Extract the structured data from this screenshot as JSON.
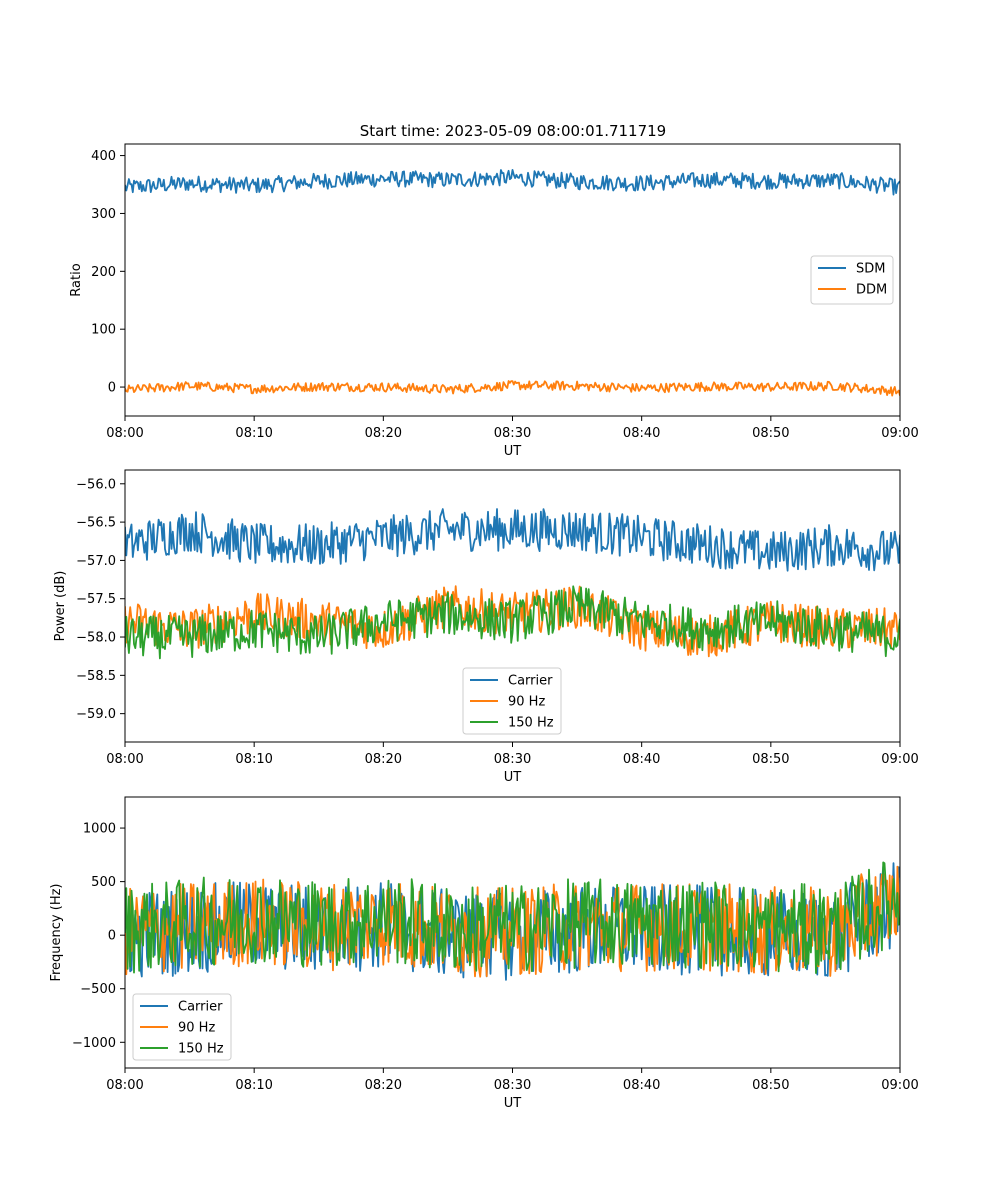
{
  "title": "Start time: 2023-05-09 08:00:01.711719",
  "colors": {
    "blue": "#1f77b4",
    "orange": "#ff7f0e",
    "green": "#2ca02c"
  },
  "x_tick_labels": [
    "08:00",
    "08:10",
    "08:20",
    "08:30",
    "08:40",
    "08:50",
    "09:00"
  ],
  "chart_data": [
    {
      "type": "line",
      "xlabel": "UT",
      "ylabel": "Ratio",
      "xlim": [
        "08:00",
        "09:00"
      ],
      "ylim": [
        -50,
        420
      ],
      "yticks": [
        0,
        100,
        200,
        300,
        400
      ],
      "ytick_labels": [
        "0",
        "100",
        "200",
        "300",
        "400"
      ],
      "legend": "center-right",
      "x": [
        "08:00",
        "08:05",
        "08:10",
        "08:15",
        "08:20",
        "08:25",
        "08:30",
        "08:35",
        "08:40",
        "08:45",
        "08:50",
        "08:55",
        "09:00"
      ],
      "series": [
        {
          "name": "SDM",
          "color": "#1f77b4",
          "values": [
            345,
            352,
            348,
            356,
            360,
            358,
            362,
            355,
            352,
            358,
            356,
            357,
            345
          ],
          "noise": 14
        },
        {
          "name": "DDM",
          "color": "#ff7f0e",
          "values": [
            -5,
            2,
            -3,
            1,
            0,
            -4,
            3,
            2,
            -2,
            1,
            0,
            2,
            -8
          ],
          "noise": 8
        }
      ]
    },
    {
      "type": "line",
      "xlabel": "UT",
      "ylabel": "Power (dB)",
      "xlim": [
        "08:00",
        "09:00"
      ],
      "ylim": [
        -59.37,
        -55.82
      ],
      "yticks": [
        -59.0,
        -58.5,
        -58.0,
        -57.5,
        -57.0,
        -56.5,
        -56.0
      ],
      "ytick_labels": [
        "−59.0",
        "−58.5",
        "−58.0",
        "−57.5",
        "−57.0",
        "−56.5",
        "−56.0"
      ],
      "legend": "bottom-center",
      "x": [
        "08:00",
        "08:05",
        "08:10",
        "08:15",
        "08:20",
        "08:25",
        "08:30",
        "08:35",
        "08:40",
        "08:45",
        "08:50",
        "08:55",
        "09:00"
      ],
      "series": [
        {
          "name": "Carrier",
          "color": "#1f77b4",
          "values": [
            -56.8,
            -56.6,
            -56.8,
            -56.8,
            -56.7,
            -56.6,
            -56.6,
            -56.6,
            -56.7,
            -56.8,
            -56.9,
            -56.8,
            -56.9
          ],
          "noise": 0.28
        },
        {
          "name": "90 Hz",
          "color": "#ff7f0e",
          "values": [
            -57.8,
            -57.9,
            -57.7,
            -57.8,
            -57.9,
            -57.6,
            -57.7,
            -57.6,
            -57.9,
            -58.0,
            -57.8,
            -57.9,
            -57.9
          ],
          "noise": 0.28
        },
        {
          "name": "150 Hz",
          "color": "#2ca02c",
          "values": [
            -58.0,
            -58.0,
            -57.9,
            -58.0,
            -57.8,
            -57.7,
            -57.8,
            -57.6,
            -57.8,
            -57.9,
            -57.8,
            -57.9,
            -58.0
          ],
          "noise": 0.28
        }
      ]
    },
    {
      "type": "line",
      "xlabel": "UT",
      "ylabel": "Frequency (Hz)",
      "xlim": [
        "08:00",
        "09:00"
      ],
      "ylim": [
        -1240,
        1290
      ],
      "yticks": [
        -1000,
        -500,
        0,
        500,
        1000
      ],
      "ytick_labels": [
        "−1000",
        "−500",
        "0",
        "500",
        "1000"
      ],
      "legend": "bottom-left",
      "x": [
        "08:00",
        "08:05",
        "08:10",
        "08:15",
        "08:20",
        "08:25",
        "08:30",
        "08:35",
        "08:40",
        "08:45",
        "08:50",
        "08:55",
        "09:00"
      ],
      "series": [
        {
          "name": "Carrier",
          "color": "#1f77b4",
          "values": [
            0,
            50,
            100,
            50,
            100,
            0,
            0,
            50,
            50,
            50,
            0,
            0,
            300
          ],
          "noise": 420
        },
        {
          "name": "90 Hz",
          "color": "#ff7f0e",
          "values": [
            30,
            80,
            130,
            80,
            130,
            30,
            30,
            80,
            80,
            80,
            30,
            30,
            330
          ],
          "noise": 420
        },
        {
          "name": "150 Hz",
          "color": "#2ca02c",
          "values": [
            60,
            110,
            160,
            110,
            160,
            60,
            60,
            110,
            110,
            110,
            60,
            60,
            360
          ],
          "noise": 420
        }
      ]
    }
  ]
}
